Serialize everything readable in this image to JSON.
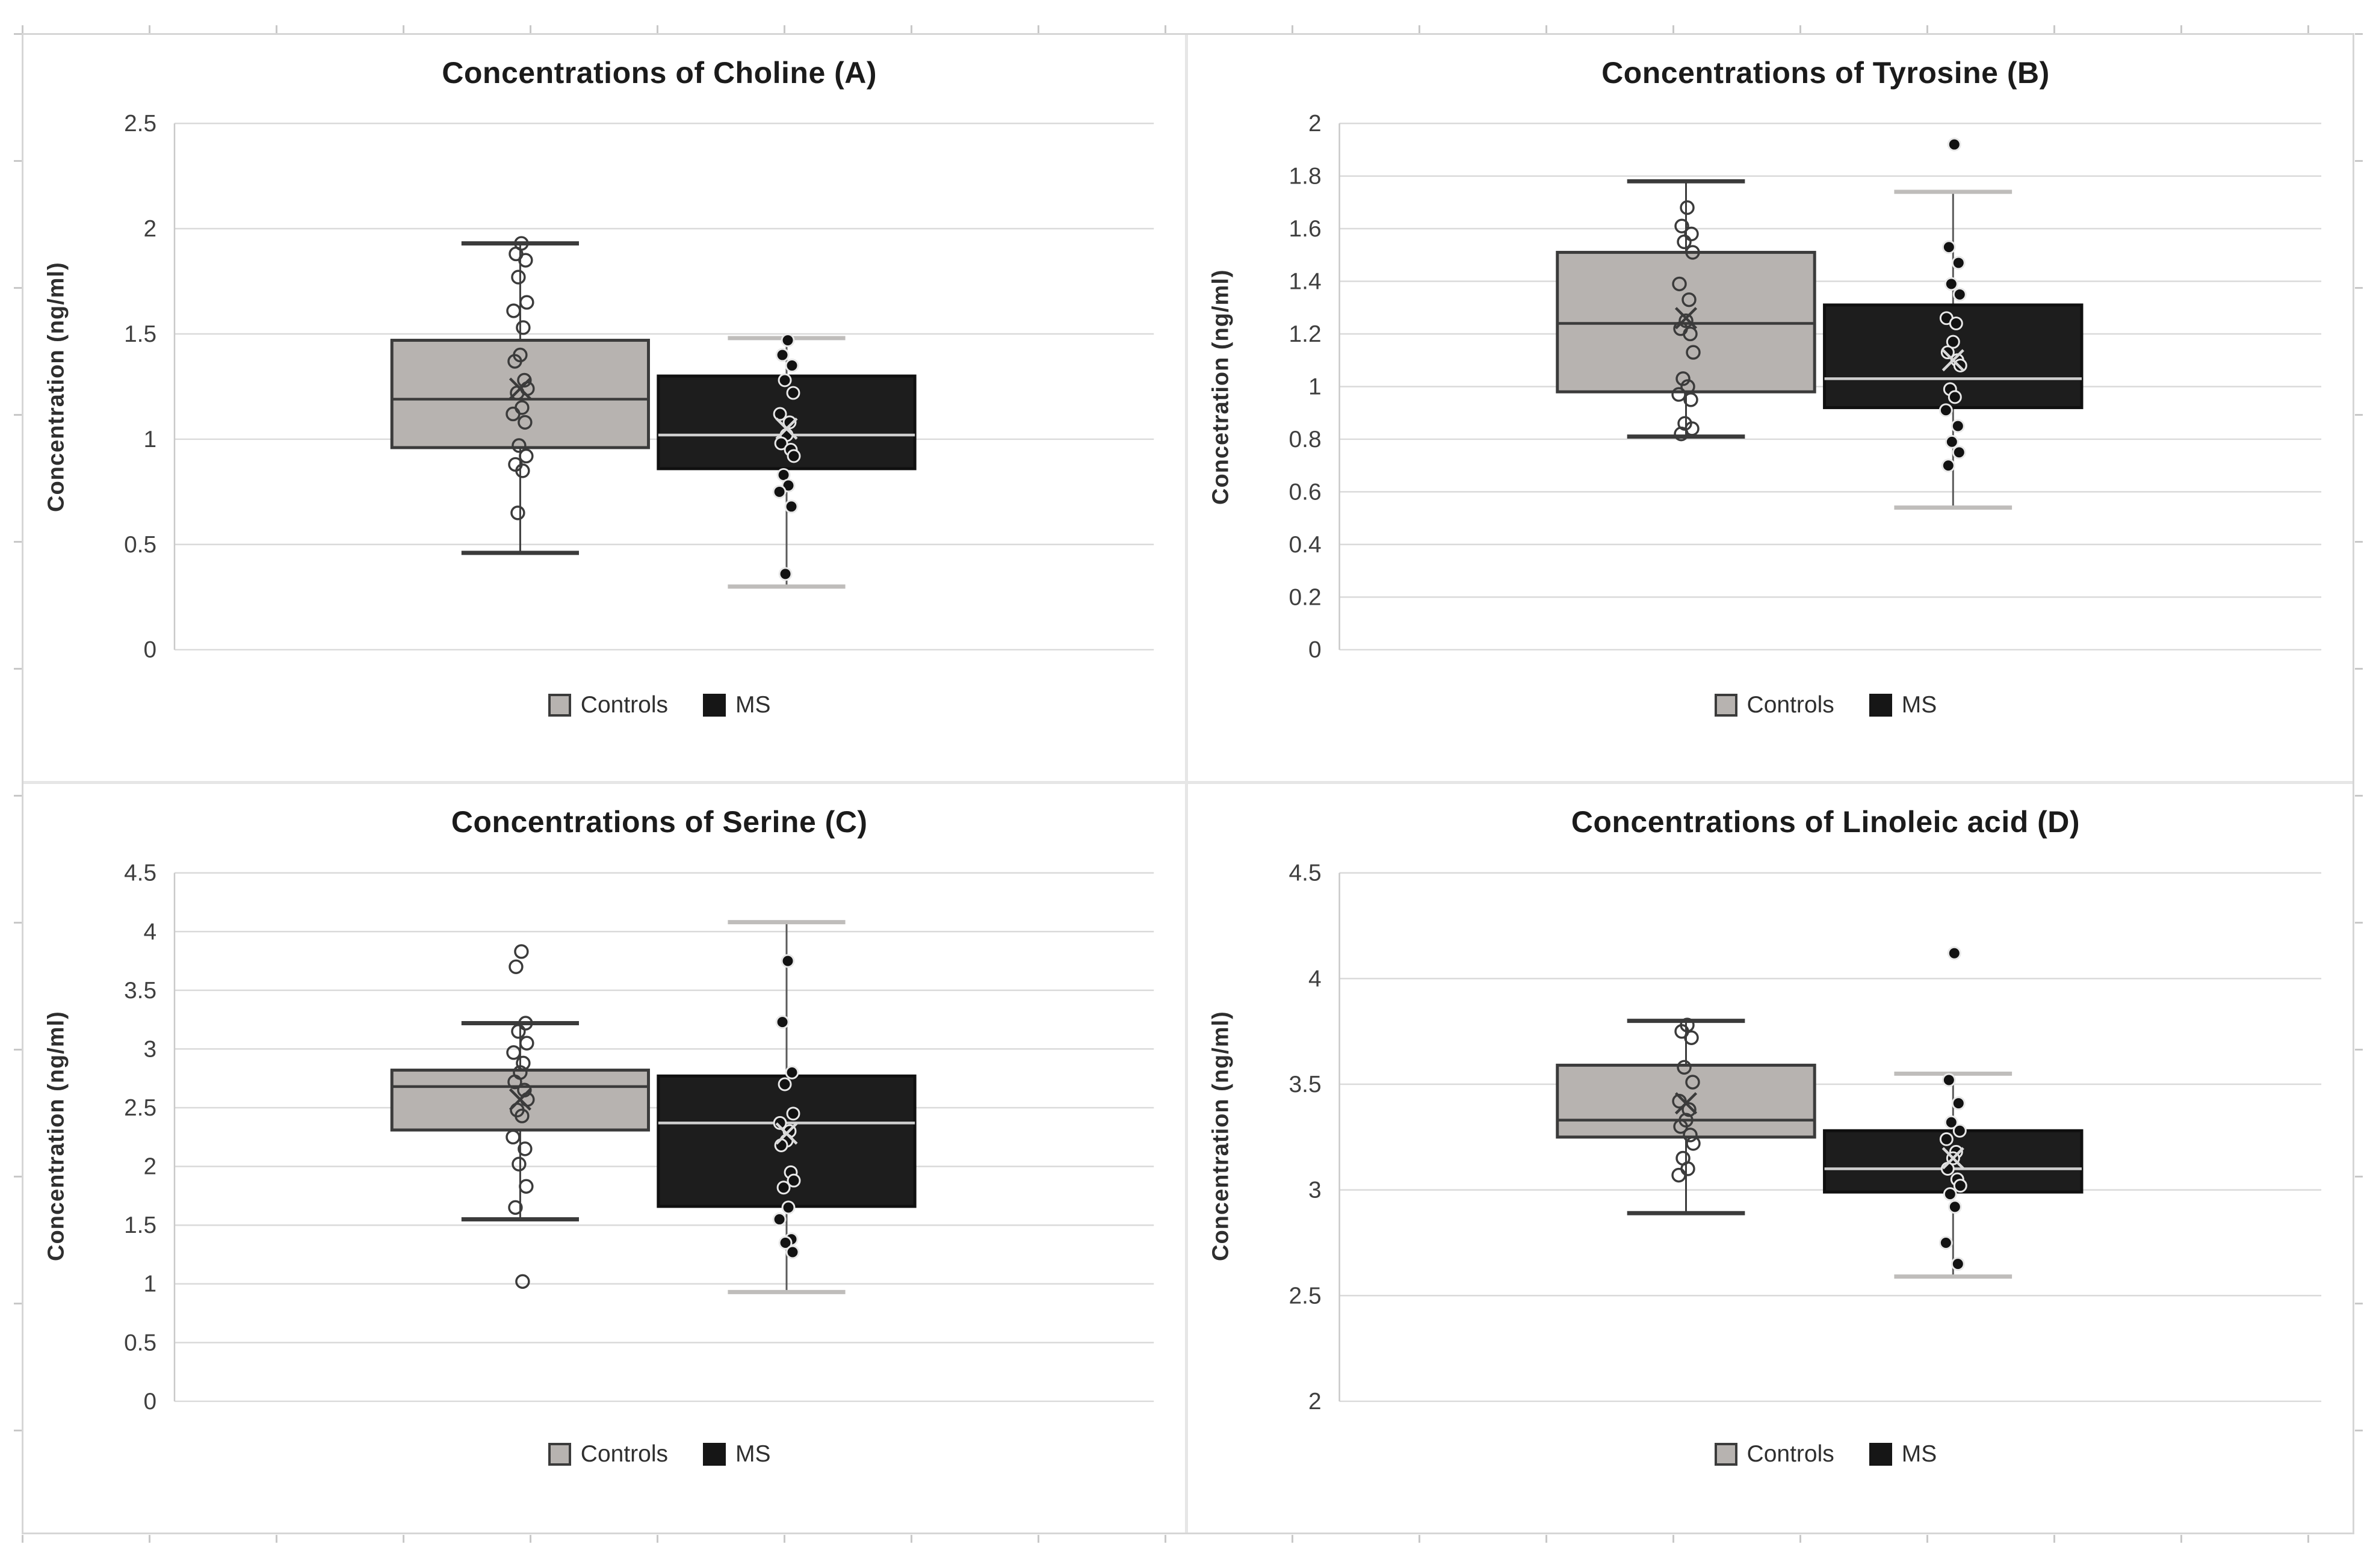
{
  "colors": {
    "background": "#ffffff",
    "frame_border": "#d6d6d6",
    "panel_divider": "#e6e6e6",
    "ruler_tick": "#c8c8c8",
    "grid_line": "#dadada",
    "axis_line": "#c9c9c9",
    "title_text": "#1b1b1b",
    "tick_text": "#3f3f3f",
    "controls_fill": "#b7b3b0",
    "controls_stroke": "#3b3b3b",
    "ms_fill": "#1d1d1d",
    "ms_stroke": "#101010",
    "ms_median_line": "#cfcfcf",
    "ms_whisker_cap": "#bfbdbb",
    "ms_whisker_line": "#5a5a5a",
    "controls_point_stroke": "#3b3b3b",
    "ms_point_fill": "#121212",
    "ms_point_stroke": "#e8e8e8",
    "controls_mean": "#3b3b3b",
    "ms_mean": "#d9d9d9"
  },
  "chart_data": [
    {
      "id": "A",
      "type": "box",
      "title": "Concentrations of Choline (A)",
      "ylabel": "Concentration (ng/ml)",
      "ylim": [
        0,
        2.5
      ],
      "grid": true,
      "legend_position": "bottom",
      "legend": [
        "Controls",
        "MS"
      ],
      "ytick_values": [
        0,
        0.5,
        1,
        1.5,
        2,
        2.5
      ],
      "ytick_labels": [
        "0",
        "0.5",
        "1",
        "1.5",
        "2",
        "2.5"
      ],
      "series": [
        {
          "name": "Controls",
          "box": {
            "whisker_low": 0.46,
            "q1": 0.96,
            "median": 1.19,
            "q3": 1.47,
            "whisker_high": 1.93,
            "mean": 1.24
          },
          "points": [
            1.93,
            1.88,
            1.85,
            1.77,
            1.65,
            1.61,
            1.53,
            1.4,
            1.37,
            1.28,
            1.24,
            1.22,
            1.15,
            1.12,
            1.08,
            0.97,
            0.92,
            0.88,
            0.85,
            0.65
          ]
        },
        {
          "name": "MS",
          "box": {
            "whisker_low": 0.3,
            "q1": 0.86,
            "median": 1.02,
            "q3": 1.3,
            "whisker_high": 1.48,
            "mean": 1.05
          },
          "points": [
            1.47,
            1.4,
            1.35,
            1.28,
            1.22,
            1.12,
            1.08,
            1.02,
            0.98,
            0.95,
            0.92,
            0.83,
            0.78,
            0.75,
            0.68,
            0.36
          ]
        }
      ]
    },
    {
      "id": "B",
      "type": "box",
      "title": "Concentrations of Tyrosine (B)",
      "ylabel": "Concetration (ng/ml)",
      "ylim": [
        0,
        2
      ],
      "grid": true,
      "legend_position": "bottom",
      "legend": [
        "Controls",
        "MS"
      ],
      "ytick_values": [
        0,
        0.2,
        0.4,
        0.6,
        0.8,
        1,
        1.2,
        1.4,
        1.6,
        1.8,
        2
      ],
      "ytick_labels": [
        "0",
        "0.2",
        "0.4",
        "0.6",
        "0.8",
        "1",
        "1.2",
        "1.4",
        "1.6",
        "1.8",
        "2"
      ],
      "series": [
        {
          "name": "Controls",
          "box": {
            "whisker_low": 0.81,
            "q1": 0.98,
            "median": 1.24,
            "q3": 1.51,
            "whisker_high": 1.78,
            "mean": 1.26
          },
          "points": [
            1.68,
            1.61,
            1.58,
            1.55,
            1.51,
            1.39,
            1.33,
            1.25,
            1.22,
            1.2,
            1.13,
            1.03,
            1.0,
            0.97,
            0.95,
            0.86,
            0.84,
            0.82
          ]
        },
        {
          "name": "MS",
          "box": {
            "whisker_low": 0.54,
            "q1": 0.92,
            "median": 1.03,
            "q3": 1.31,
            "whisker_high": 1.74,
            "mean": 1.1
          },
          "outliers": [
            1.92
          ],
          "points": [
            1.92,
            1.53,
            1.47,
            1.39,
            1.35,
            1.26,
            1.24,
            1.17,
            1.13,
            1.1,
            1.08,
            0.99,
            0.96,
            0.91,
            0.85,
            0.79,
            0.75,
            0.7
          ]
        }
      ]
    },
    {
      "id": "C",
      "type": "box",
      "title": "Concentrations of Serine (C)",
      "ylabel": "Concentration (ng/ml)",
      "ylim": [
        0,
        4.5
      ],
      "grid": true,
      "legend_position": "bottom",
      "legend": [
        "Controls",
        "MS"
      ],
      "ytick_values": [
        0,
        0.5,
        1,
        1.5,
        2,
        2.5,
        3,
        3.5,
        4,
        4.5
      ],
      "ytick_labels": [
        "0",
        "0.5",
        "1",
        "1.5",
        "2",
        "2.5",
        "3",
        "3.5",
        "4",
        "4.5"
      ],
      "series": [
        {
          "name": "Controls",
          "box": {
            "whisker_low": 1.55,
            "q1": 2.31,
            "median": 2.68,
            "q3": 2.82,
            "whisker_high": 3.22,
            "mean": 2.57
          },
          "outliers": [
            3.83,
            3.7,
            1.02
          ],
          "points": [
            3.83,
            3.7,
            3.22,
            3.15,
            3.05,
            2.97,
            2.88,
            2.8,
            2.72,
            2.65,
            2.57,
            2.48,
            2.43,
            2.25,
            2.15,
            2.02,
            1.83,
            1.65,
            1.02
          ]
        },
        {
          "name": "MS",
          "box": {
            "whisker_low": 0.93,
            "q1": 1.66,
            "median": 2.37,
            "q3": 2.77,
            "whisker_high": 4.08,
            "mean": 2.28
          },
          "points": [
            3.75,
            3.23,
            2.8,
            2.7,
            2.45,
            2.37,
            2.3,
            2.22,
            2.18,
            1.95,
            1.88,
            1.82,
            1.65,
            1.55,
            1.38,
            1.35,
            1.27
          ]
        }
      ]
    },
    {
      "id": "D",
      "type": "box",
      "title": "Concentrations of Linoleic acid (D)",
      "ylabel": "Concentration (ng/ml)",
      "ylim": [
        2,
        4.5
      ],
      "grid": true,
      "legend_position": "bottom",
      "legend": [
        "Controls",
        "MS"
      ],
      "ytick_values": [
        2,
        2.5,
        3,
        3.5,
        4,
        4.5
      ],
      "ytick_labels": [
        "2",
        "2.5",
        "3",
        "3.5",
        "4",
        "4.5"
      ],
      "series": [
        {
          "name": "Controls",
          "box": {
            "whisker_low": 2.89,
            "q1": 3.25,
            "median": 3.33,
            "q3": 3.59,
            "whisker_high": 3.8,
            "mean": 3.41
          },
          "points": [
            3.78,
            3.75,
            3.72,
            3.58,
            3.51,
            3.42,
            3.38,
            3.33,
            3.3,
            3.26,
            3.22,
            3.15,
            3.1,
            3.07
          ]
        },
        {
          "name": "MS",
          "box": {
            "whisker_low": 2.59,
            "q1": 2.99,
            "median": 3.1,
            "q3": 3.28,
            "whisker_high": 3.55,
            "mean": 3.15
          },
          "outliers": [
            4.12
          ],
          "points": [
            4.12,
            3.52,
            3.41,
            3.32,
            3.28,
            3.24,
            3.18,
            3.15,
            3.1,
            3.05,
            3.02,
            2.98,
            2.92,
            2.75,
            2.65
          ]
        }
      ]
    }
  ]
}
